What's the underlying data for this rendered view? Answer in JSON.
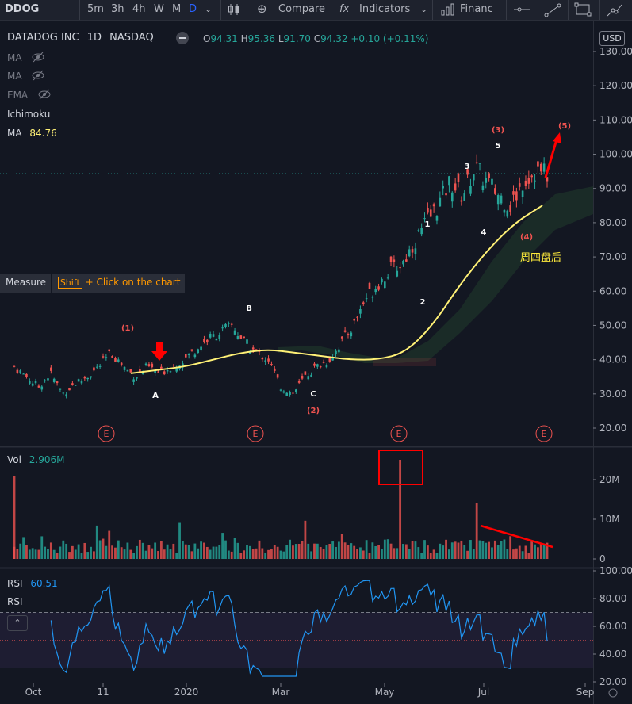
{
  "toolbar": {
    "symbol": "DDOG",
    "intervals": [
      "5m",
      "3h",
      "4h",
      "W",
      "M",
      "D"
    ],
    "active_interval": "D",
    "compare_label": "Compare",
    "indicators_label": "Indicators",
    "financials_label": "Financ"
  },
  "legend": {
    "title": "DATADOG INC",
    "interval": "1D",
    "exchange": "NASDAQ",
    "o_label": "O",
    "o": "94.31",
    "h_label": "H",
    "h": "95.36",
    "l_label": "L",
    "l": "91.70",
    "c_label": "C",
    "c": "94.32",
    "change": "+0.10 (+0.11%)",
    "studies": [
      {
        "name": "MA",
        "hidden": true
      },
      {
        "name": "MA",
        "hidden": true
      },
      {
        "name": "EMA",
        "hidden": true
      },
      {
        "name": "Ichimoku",
        "hidden": false
      },
      {
        "name": "MA",
        "value": "84.76",
        "hidden": false
      }
    ]
  },
  "currency": "USD",
  "measure_tip": {
    "label": "Measure",
    "key": "Shift",
    "text": "+ Click on the chart"
  },
  "volume": {
    "label": "Vol",
    "value": "2.906M",
    "ticks": [
      "20M",
      "10M",
      "0"
    ]
  },
  "rsi": {
    "label": "RSI",
    "value": "60.51",
    "label2": "RSI",
    "ticks": [
      "100.00",
      "80.00",
      "60.00",
      "40.00",
      "20.00"
    ]
  },
  "time_axis": [
    "Oct",
    "11",
    "2020",
    "Mar",
    "May",
    "Jul",
    "Sep"
  ],
  "colors": {
    "up": "#26a69a",
    "down": "#ef5350",
    "ma": "#fff176",
    "rsi": "#2196f3",
    "accent": "#2962ff",
    "annot": "#ff0000"
  },
  "chart_data": {
    "type": "candlestick",
    "price_ticks": [
      "130.00",
      "120.00",
      "110.00",
      "100.00",
      "90.00",
      "80.00",
      "70.00",
      "60.00",
      "50.00",
      "40.00",
      "30.00",
      "20.00"
    ],
    "price_range": [
      17,
      133
    ],
    "last_price": 94.32,
    "wave_labels": [
      "(1)",
      "A",
      "B",
      "C",
      "(2)",
      "1",
      "2",
      "3",
      "4",
      "(3)",
      "5",
      "(4)",
      "(5)"
    ],
    "earnings_marker": "E",
    "note_cn": "周四盘后",
    "price_path": [
      [
        "Oct",
        38
      ],
      [
        "",
        35
      ],
      [
        "",
        32
      ],
      [
        "",
        36
      ],
      [
        "",
        30
      ],
      [
        "",
        33
      ],
      [
        "",
        35
      ],
      [
        "11",
        38
      ],
      [
        "",
        42
      ],
      [
        "",
        38
      ],
      [
        "",
        35
      ],
      [
        "",
        38
      ],
      [
        "",
        36
      ],
      [
        "",
        38
      ],
      [
        "",
        40
      ],
      [
        "2020",
        43
      ],
      [
        "",
        46
      ],
      [
        "",
        48
      ],
      [
        "",
        50
      ],
      [
        "",
        45
      ],
      [
        "",
        42
      ],
      [
        "Mar",
        40
      ],
      [
        "",
        32
      ],
      [
        "",
        30
      ],
      [
        "",
        35
      ],
      [
        "",
        38
      ],
      [
        "",
        40
      ],
      [
        "",
        45
      ],
      [
        "",
        50
      ],
      [
        "",
        58
      ],
      [
        "May",
        62
      ],
      [
        "",
        66
      ],
      [
        "",
        68
      ],
      [
        "",
        74
      ],
      [
        "",
        80
      ],
      [
        "",
        85
      ],
      [
        "",
        92
      ],
      [
        "",
        88
      ],
      [
        "Jul",
        96
      ],
      [
        "",
        92
      ],
      [
        "",
        88
      ],
      [
        "",
        85
      ],
      [
        "",
        92
      ],
      [
        "",
        95
      ],
      [
        "",
        94.3
      ]
    ],
    "ma_path": [
      36,
      37,
      38,
      40,
      42,
      43,
      42,
      41,
      40,
      40,
      42,
      50,
      62,
      72,
      80,
      85
    ],
    "volume_ticks": [
      "20M",
      "10M",
      "0"
    ],
    "rsi_ticks": [
      "100.00",
      "80.00",
      "60.00",
      "40.00",
      "20.00"
    ],
    "rsi_levels": [
      70,
      50,
      30
    ]
  }
}
